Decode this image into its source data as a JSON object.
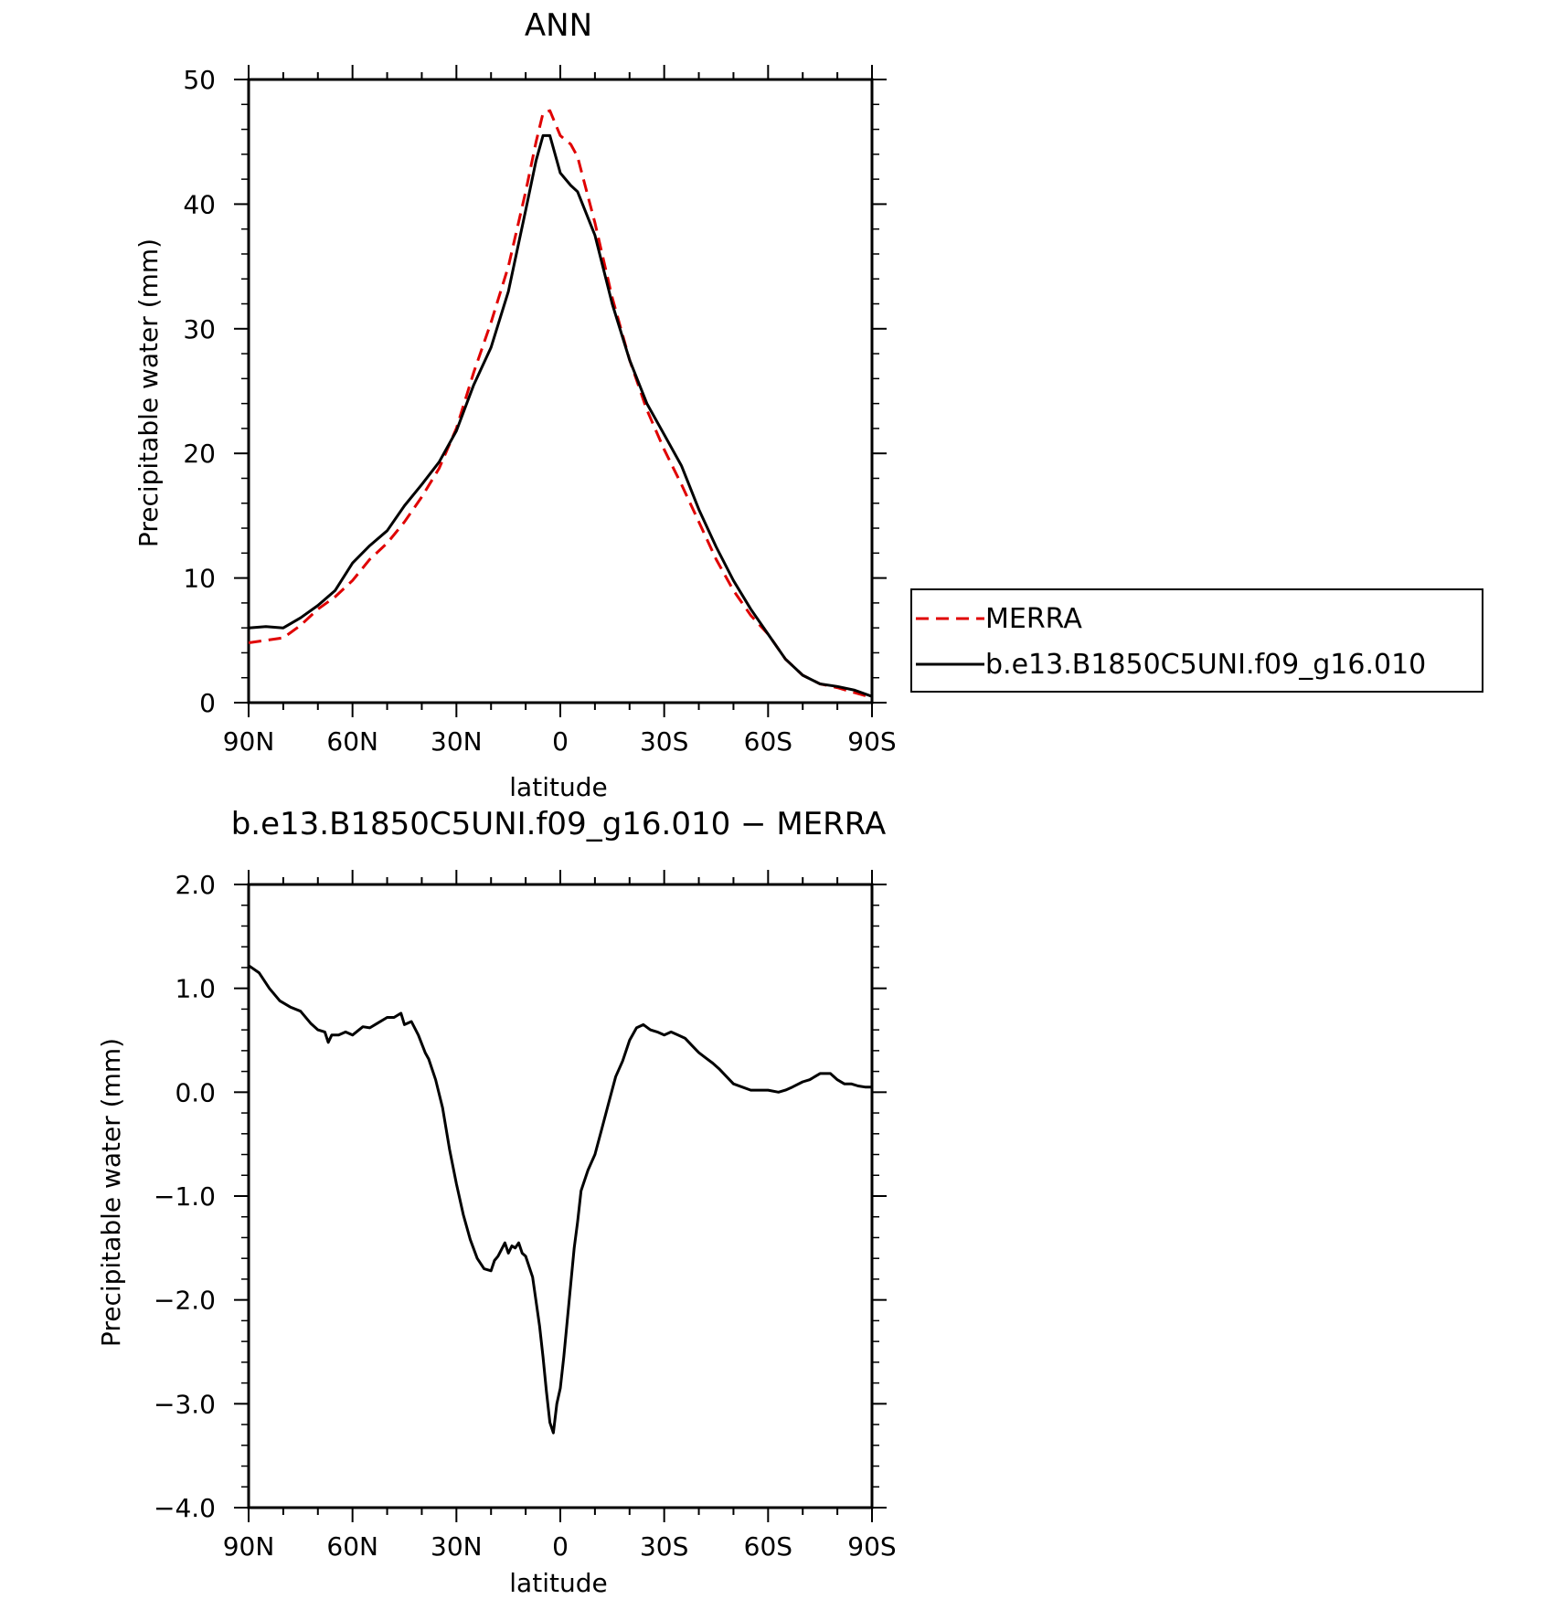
{
  "colors": {
    "merra": "#e00000",
    "model": "#000000",
    "background": "#ffffff"
  },
  "chart_data": [
    {
      "type": "line",
      "title": "ANN",
      "xlabel": "latitude",
      "ylabel": "Precipitable water (mm)",
      "xlim": [
        90,
        -90
      ],
      "ylim": [
        0,
        50
      ],
      "xticks": [
        90,
        60,
        30,
        0,
        -30,
        -60,
        -90
      ],
      "xtick_labels": [
        "90N",
        "60N",
        "30N",
        "0",
        "30S",
        "60S",
        "90S"
      ],
      "yticks": [
        0,
        10,
        20,
        30,
        40,
        50
      ],
      "ytick_labels": [
        "0",
        "10",
        "20",
        "30",
        "40",
        "50"
      ],
      "legend": {
        "placement": "right",
        "entries": [
          "MERRA",
          "b.e13.B1850C5UNI.f09_g16.010"
        ]
      },
      "grid": false,
      "series": [
        {
          "name": "MERRA",
          "color": "#e00000",
          "dash": "dashed",
          "x": [
            90,
            85,
            80,
            75,
            70,
            65,
            60,
            55,
            50,
            45,
            40,
            35,
            30,
            25,
            20,
            15,
            10,
            7,
            5,
            3,
            0,
            -3,
            -5,
            -10,
            -15,
            -20,
            -25,
            -30,
            -35,
            -40,
            -45,
            -50,
            -55,
            -60,
            -65,
            -70,
            -75,
            -80,
            -85,
            -90
          ],
          "y": [
            4.8,
            5.0,
            5.2,
            6.2,
            7.5,
            8.5,
            9.8,
            11.5,
            12.8,
            14.5,
            16.5,
            18.8,
            22.0,
            26.5,
            30.5,
            35.0,
            41.0,
            45.0,
            47.3,
            47.5,
            45.5,
            44.8,
            43.8,
            38.5,
            32.5,
            27.5,
            23.5,
            20.3,
            17.5,
            14.5,
            11.5,
            9.0,
            7.0,
            5.5,
            3.5,
            2.2,
            1.5,
            1.2,
            0.8,
            0.4
          ]
        },
        {
          "name": "b.e13.B1850C5UNI.f09_g16.010",
          "color": "#000000",
          "dash": "solid",
          "x": [
            90,
            85,
            80,
            75,
            70,
            65,
            60,
            55,
            50,
            45,
            40,
            35,
            30,
            25,
            20,
            15,
            10,
            7,
            5,
            3,
            0,
            -3,
            -5,
            -10,
            -15,
            -20,
            -25,
            -30,
            -35,
            -40,
            -45,
            -50,
            -55,
            -60,
            -65,
            -70,
            -75,
            -80,
            -85,
            -90
          ],
          "y": [
            6.0,
            6.1,
            6.0,
            6.8,
            7.8,
            9.0,
            11.2,
            12.6,
            13.8,
            15.8,
            17.5,
            19.3,
            21.8,
            25.5,
            28.5,
            33.0,
            39.5,
            43.5,
            45.5,
            45.5,
            42.5,
            41.5,
            41.0,
            37.5,
            32.0,
            27.5,
            24.0,
            21.5,
            19.0,
            15.5,
            12.5,
            9.8,
            7.5,
            5.5,
            3.5,
            2.2,
            1.5,
            1.3,
            1.0,
            0.5
          ]
        }
      ]
    },
    {
      "type": "line",
      "title": "b.e13.B1850C5UNI.f09_g16.010 − MERRA",
      "xlabel": "latitude",
      "ylabel": "Precipitable water (mm)",
      "xlim": [
        90,
        -90
      ],
      "ylim": [
        -4.0,
        2.0
      ],
      "xticks": [
        90,
        60,
        30,
        0,
        -30,
        -60,
        -90
      ],
      "xtick_labels": [
        "90N",
        "60N",
        "30N",
        "0",
        "30S",
        "60S",
        "90S"
      ],
      "yticks": [
        2.0,
        1.0,
        0.0,
        -1.0,
        -2.0,
        -3.0,
        -4.0
      ],
      "ytick_labels": [
        "2.0",
        "1.0",
        "0.0",
        "−1.0",
        "−2.0",
        "−3.0",
        "−4.0"
      ],
      "grid": false,
      "series": [
        {
          "color": "#000000",
          "dash": "solid",
          "x": [
            90,
            87,
            84,
            81,
            78,
            75,
            72,
            70,
            68,
            67,
            66,
            64,
            62,
            60,
            57,
            55,
            53,
            50,
            48,
            46,
            45,
            43,
            41,
            39,
            38,
            36,
            34,
            32,
            30,
            28,
            26,
            24,
            22,
            20,
            19,
            18,
            16,
            15,
            14,
            13,
            12,
            11,
            10,
            8,
            6,
            5,
            4,
            3,
            2,
            1,
            0,
            -1,
            -2,
            -3,
            -4,
            -5,
            -6,
            -8,
            -10,
            -12,
            -14,
            -16,
            -18,
            -20,
            -22,
            -24,
            -26,
            -28,
            -30,
            -32,
            -34,
            -36,
            -38,
            -40,
            -42,
            -44,
            -46,
            -48,
            -50,
            -55,
            -60,
            -63,
            -65,
            -67,
            -70,
            -72,
            -75,
            -78,
            -80,
            -82,
            -84,
            -86,
            -88,
            -90
          ],
          "y": [
            1.22,
            1.15,
            1.0,
            0.88,
            0.82,
            0.78,
            0.66,
            0.6,
            0.58,
            0.48,
            0.55,
            0.55,
            0.58,
            0.55,
            0.63,
            0.62,
            0.66,
            0.72,
            0.72,
            0.76,
            0.65,
            0.68,
            0.55,
            0.38,
            0.32,
            0.12,
            -0.15,
            -0.55,
            -0.88,
            -1.18,
            -1.42,
            -1.6,
            -1.7,
            -1.72,
            -1.62,
            -1.58,
            -1.45,
            -1.55,
            -1.48,
            -1.5,
            -1.45,
            -1.55,
            -1.58,
            -1.78,
            -2.25,
            -2.55,
            -2.88,
            -3.18,
            -3.28,
            -3.0,
            -2.85,
            -2.55,
            -2.2,
            -1.85,
            -1.5,
            -1.25,
            -0.95,
            -0.75,
            -0.6,
            -0.35,
            -0.1,
            0.15,
            0.3,
            0.5,
            0.62,
            0.65,
            0.6,
            0.58,
            0.55,
            0.58,
            0.55,
            0.52,
            0.45,
            0.38,
            0.33,
            0.28,
            0.22,
            0.15,
            0.08,
            0.02,
            0.02,
            0.0,
            0.02,
            0.05,
            0.1,
            0.12,
            0.18,
            0.18,
            0.12,
            0.08,
            0.08,
            0.06,
            0.05,
            0.05
          ]
        }
      ]
    }
  ]
}
